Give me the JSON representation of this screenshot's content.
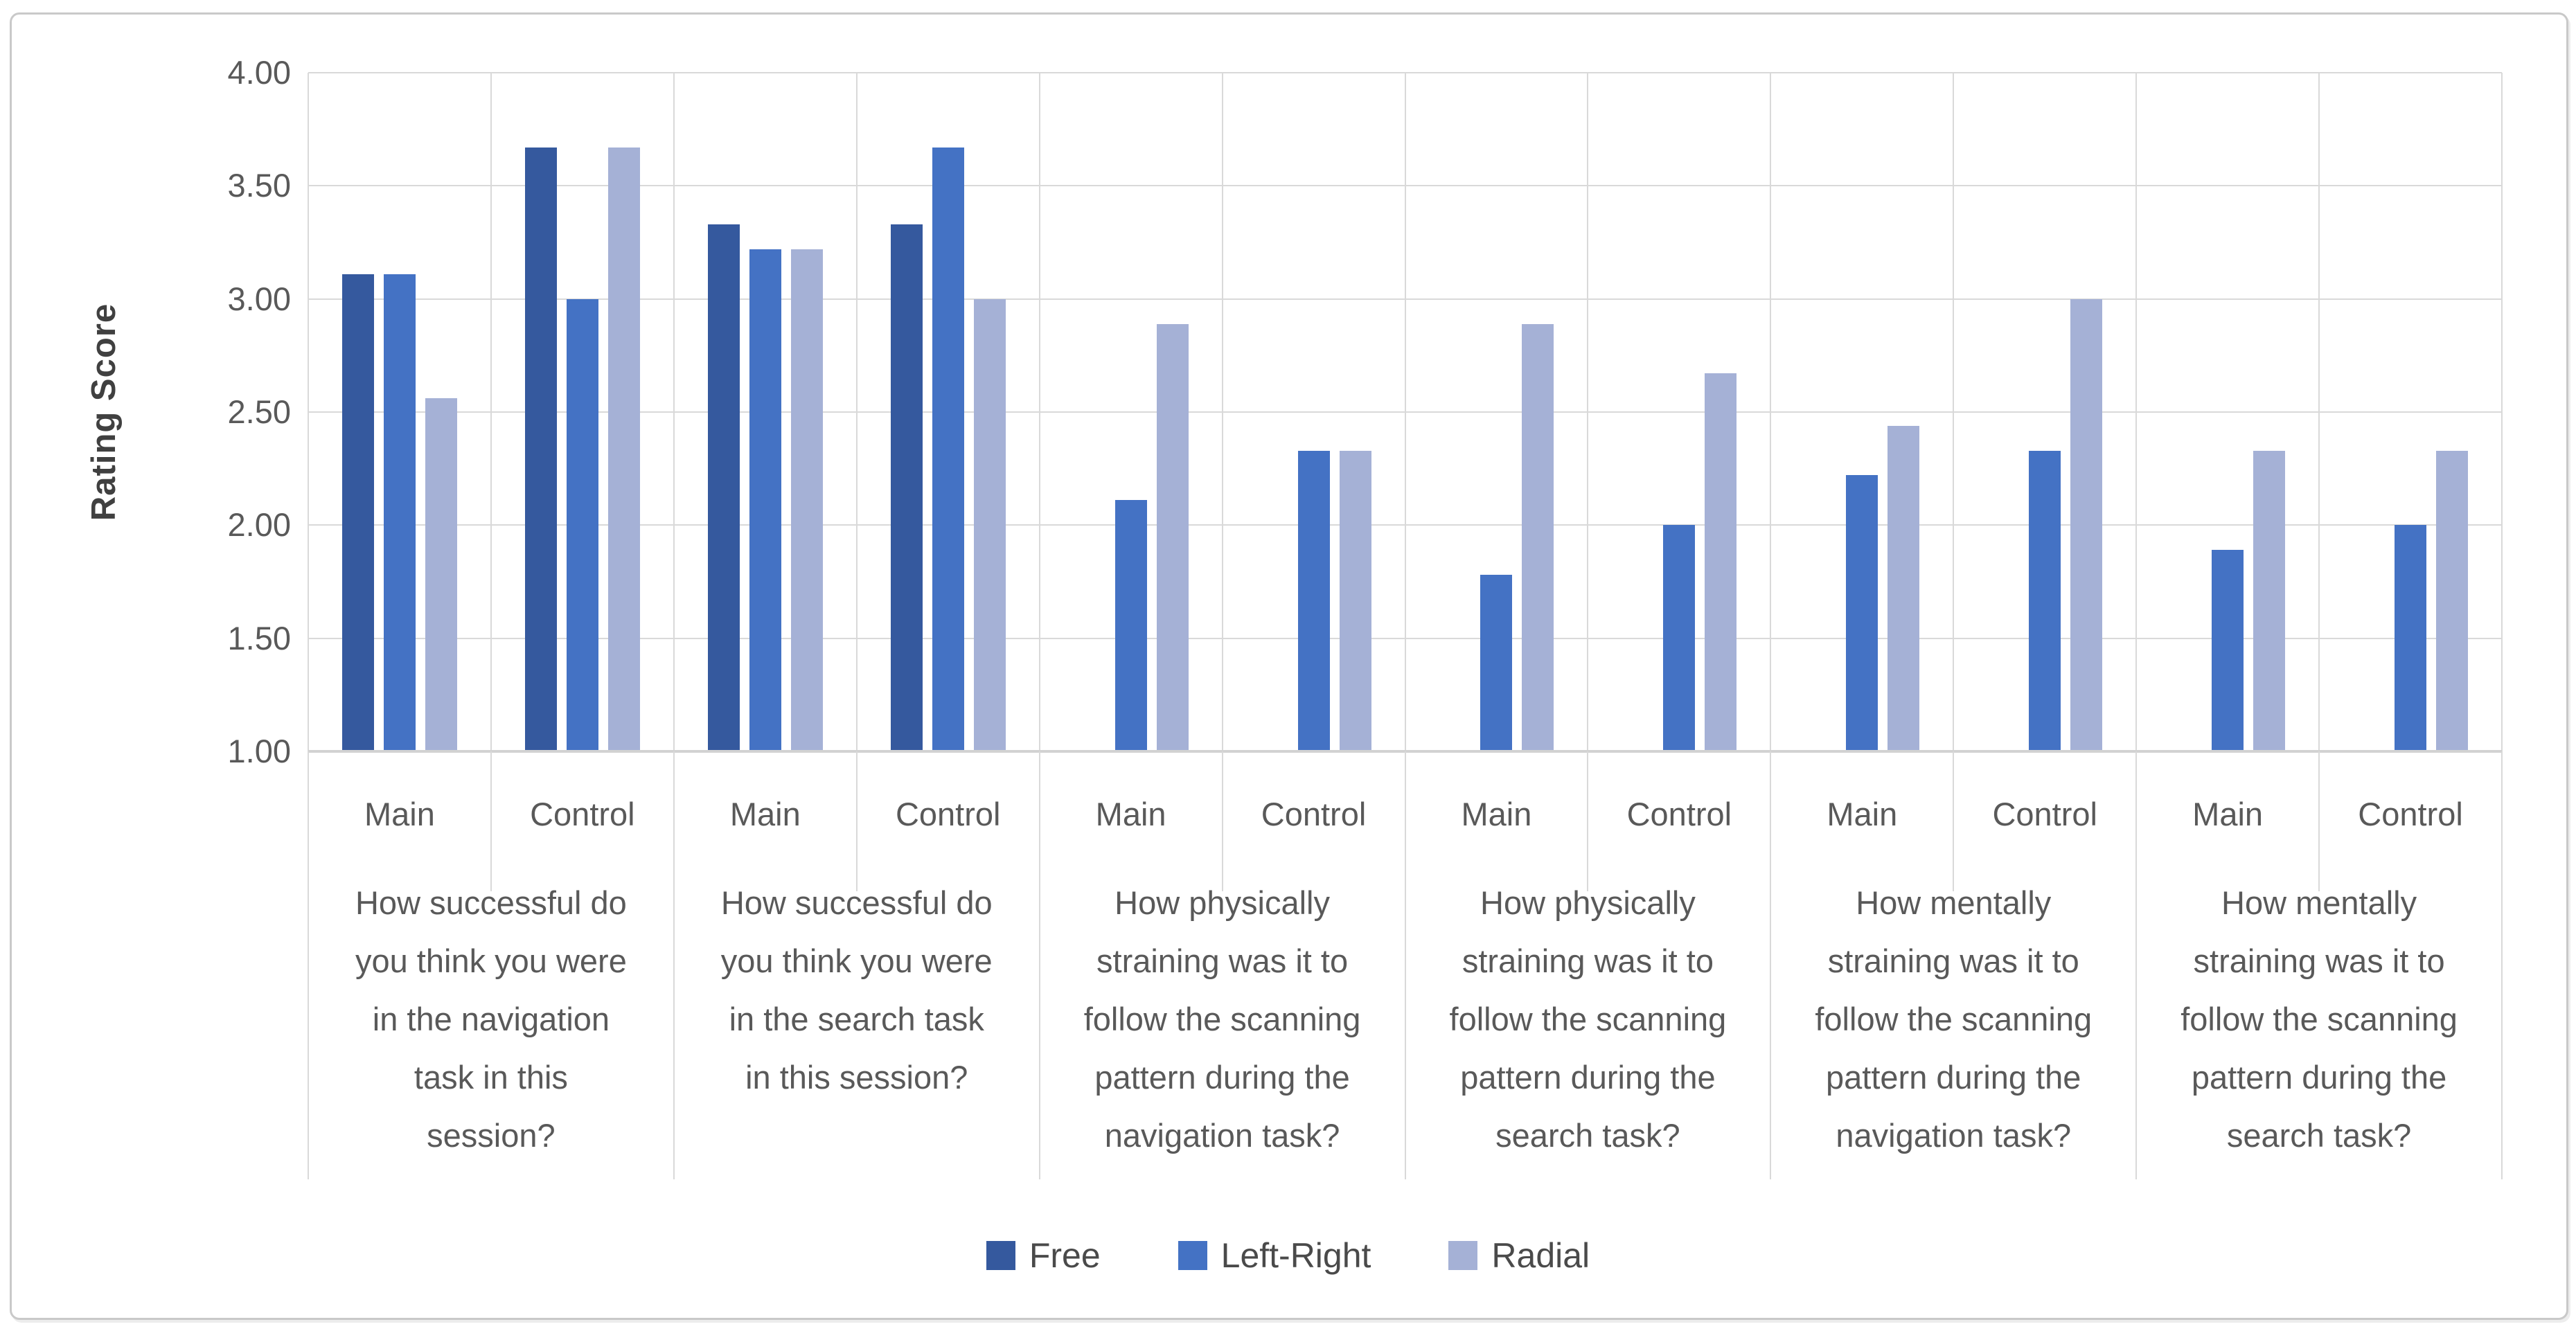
{
  "chart_data": {
    "type": "bar",
    "title": "",
    "ylabel": "Rating Score",
    "xlabel": "",
    "ylim": [
      1.0,
      4.0
    ],
    "ytick_step": 0.5,
    "yticks": [
      "4.00",
      "3.50",
      "3.00",
      "2.50",
      "2.00",
      "1.50",
      "1.00"
    ],
    "grid": "on",
    "legend_position": "bottom",
    "leaf_categories": [
      "Main",
      "Control"
    ],
    "series_meta": [
      {
        "name": "Free",
        "color": "#35599E"
      },
      {
        "name": "Left-Right",
        "color": "#4472C4"
      },
      {
        "name": "Radial",
        "color": "#A5B1D6"
      }
    ],
    "groups": [
      {
        "question": "How successful do\nyou think you were\nin the navigation\ntask in this\nsession?",
        "values": {
          "Main": [
            3.11,
            3.11,
            2.56
          ],
          "Control": [
            3.67,
            3.0,
            3.67
          ]
        }
      },
      {
        "question": "How successful do\nyou think you were\nin the search task\nin this session?",
        "values": {
          "Main": [
            3.33,
            3.22,
            3.22
          ],
          "Control": [
            3.33,
            3.67,
            3.0
          ]
        }
      },
      {
        "question": "How physically\nstraining was it to\nfollow the scanning\npattern during the\nnavigation task?",
        "values": {
          "Main": [
            null,
            2.11,
            2.89
          ],
          "Control": [
            null,
            2.33,
            2.33
          ]
        }
      },
      {
        "question": "How physically\nstraining was it to\nfollow the scanning\npattern during the\nsearch task?",
        "values": {
          "Main": [
            null,
            1.78,
            2.89
          ],
          "Control": [
            null,
            2.0,
            2.67
          ]
        }
      },
      {
        "question": "How mentally\nstraining was it to\nfollow the scanning\npattern during the\nnavigation task?",
        "values": {
          "Main": [
            null,
            2.22,
            2.44
          ],
          "Control": [
            null,
            2.33,
            3.0
          ]
        }
      },
      {
        "question": "How mentally\nstraining was it to\nfollow the scanning\npattern during the\nsearch task?",
        "values": {
          "Main": [
            null,
            1.89,
            2.33
          ],
          "Control": [
            null,
            2.0,
            2.33
          ]
        }
      }
    ],
    "colors": {
      "gridline": "#D9D9D9",
      "axis_line": "#D2D2D2",
      "text": "#595959",
      "frame_border": "#C9C9C9"
    }
  }
}
